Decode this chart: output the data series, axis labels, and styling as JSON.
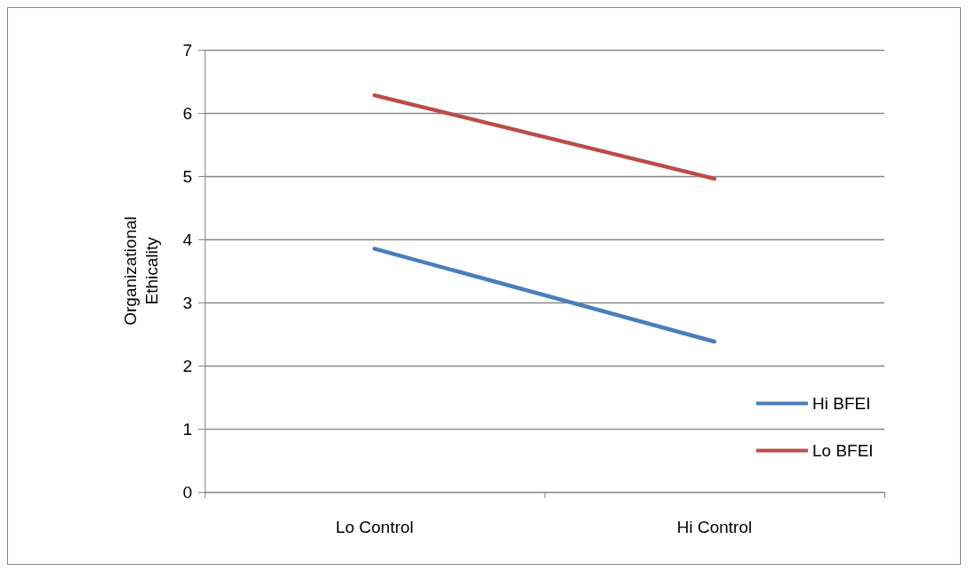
{
  "chart_data": {
    "type": "line",
    "ylabel": "Organizational\nEthicality",
    "categories": [
      "Lo Control",
      "Hi Control"
    ],
    "series": [
      {
        "name": "Hi BFEI",
        "color": "#4a7ebb",
        "values": [
          3.85,
          2.38
        ]
      },
      {
        "name": "Lo BFEI",
        "color": "#be4b48",
        "values": [
          6.28,
          4.96
        ]
      }
    ],
    "ylim": [
      0,
      7
    ],
    "yticks": [
      0,
      1,
      2,
      3,
      4,
      5,
      6,
      7
    ],
    "grid": "y",
    "legend": "bottom right",
    "marker": "none",
    "line_style": "solid"
  }
}
